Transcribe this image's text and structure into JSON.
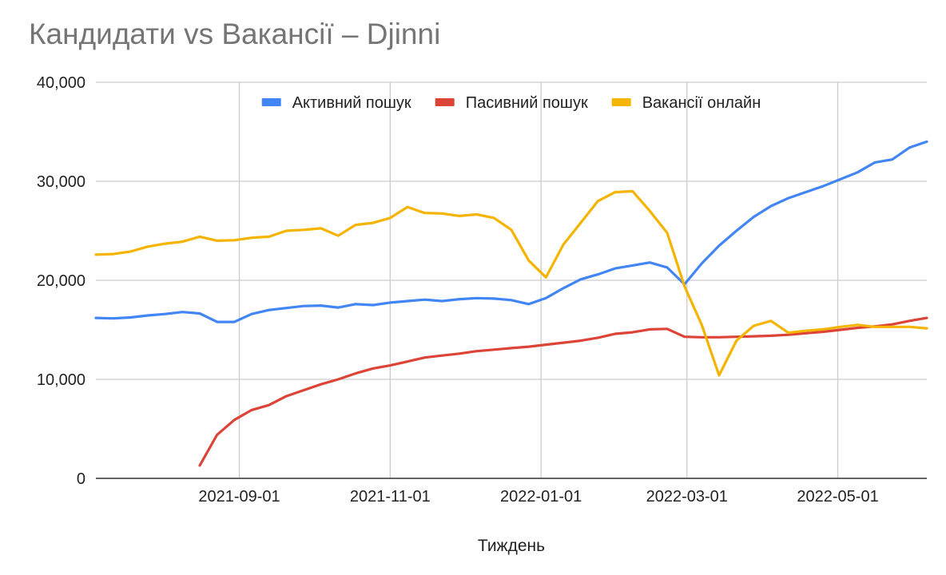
{
  "chart_data": {
    "type": "line",
    "title": "Кандидати vs Вакансії – Djinni",
    "xlabel": "Тиждень",
    "ylabel": "",
    "ylim": [
      0,
      40000
    ],
    "yticks": [
      0,
      10000,
      20000,
      30000,
      40000
    ],
    "ytick_labels": [
      "0",
      "10,000",
      "20,000",
      "30,000",
      "40,000"
    ],
    "x_range": [
      "2021-07-05",
      "2022-06-06"
    ],
    "xticks": [
      "2021-09-01",
      "2021-11-01",
      "2022-01-01",
      "2022-03-01",
      "2022-05-01"
    ],
    "grid": true,
    "legend_position": "top",
    "x": [
      "2021-07-05",
      "2021-07-12",
      "2021-07-19",
      "2021-07-26",
      "2021-08-02",
      "2021-08-09",
      "2021-08-16",
      "2021-08-23",
      "2021-08-30",
      "2021-09-06",
      "2021-09-13",
      "2021-09-20",
      "2021-09-27",
      "2021-10-04",
      "2021-10-11",
      "2021-10-18",
      "2021-10-25",
      "2021-11-01",
      "2021-11-08",
      "2021-11-15",
      "2021-11-22",
      "2021-11-29",
      "2021-12-06",
      "2021-12-13",
      "2021-12-20",
      "2021-12-27",
      "2022-01-03",
      "2022-01-10",
      "2022-01-17",
      "2022-01-24",
      "2022-01-31",
      "2022-02-07",
      "2022-02-14",
      "2022-02-21",
      "2022-02-28",
      "2022-03-07",
      "2022-03-14",
      "2022-03-21",
      "2022-03-28",
      "2022-04-04",
      "2022-04-11",
      "2022-04-18",
      "2022-04-25",
      "2022-05-02",
      "2022-05-09",
      "2022-05-16",
      "2022-05-23",
      "2022-05-30",
      "2022-06-06"
    ],
    "series": [
      {
        "name": "Активний пошук",
        "color": "#4285f4",
        "values": [
          16200,
          16150,
          16250,
          16450,
          16600,
          16800,
          16650,
          15800,
          15800,
          16600,
          17000,
          17200,
          17400,
          17450,
          17250,
          17600,
          17500,
          17750,
          17900,
          18050,
          17900,
          18100,
          18200,
          18150,
          18000,
          17600,
          18200,
          19200,
          20100,
          20600,
          21200,
          21500,
          21800,
          21300,
          19600,
          21700,
          23500,
          25000,
          26400,
          27500,
          28300,
          28900,
          29500,
          30200,
          30900,
          31900,
          32200,
          33400,
          34000
        ]
      },
      {
        "name": "Пасивний пошук",
        "color": "#db4437",
        "values": [
          null,
          null,
          null,
          null,
          null,
          null,
          1300,
          4400,
          5900,
          6900,
          7400,
          8300,
          8900,
          9500,
          10000,
          10600,
          11100,
          11400,
          11800,
          12200,
          12400,
          12600,
          12850,
          13000,
          13150,
          13300,
          13500,
          13700,
          13900,
          14200,
          14600,
          14750,
          15050,
          15100,
          14300,
          14250,
          14250,
          14300,
          14350,
          14400,
          14500,
          14650,
          14800,
          15000,
          15200,
          15350,
          15550,
          15900,
          16200
        ]
      },
      {
        "name": "Вакансії онлайн",
        "color": "#f4b400",
        "values": [
          22600,
          22650,
          22900,
          23400,
          23700,
          23900,
          24400,
          24000,
          24050,
          24300,
          24400,
          25000,
          25100,
          25250,
          24500,
          25600,
          25800,
          26300,
          27400,
          26800,
          26750,
          26500,
          26650,
          26300,
          25100,
          22000,
          20300,
          23600,
          25800,
          28000,
          28900,
          29000,
          27000,
          24800,
          19400,
          15500,
          10400,
          13900,
          15400,
          15900,
          14700,
          14900,
          15050,
          15300,
          15500,
          15300,
          15300,
          15300,
          15150
        ]
      }
    ]
  }
}
